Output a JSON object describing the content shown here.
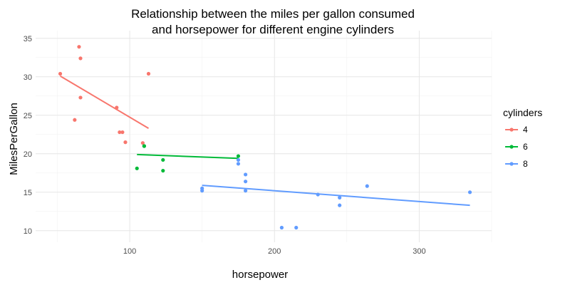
{
  "chart_data": {
    "type": "scatter",
    "title_line1": "Relationship between the miles per gallon consumed",
    "title_line2": "and horsepower for different engine cylinders",
    "xlabel": "horsepower",
    "ylabel": "MilesPerGallon",
    "xlim": [
      35,
      350
    ],
    "ylim": [
      8.5,
      36
    ],
    "xticks": [
      100,
      200,
      300
    ],
    "yticks": [
      10,
      15,
      20,
      25,
      30,
      35
    ],
    "grid": true,
    "legend_title": "cylinders",
    "legend_position": "right",
    "series": [
      {
        "name": "4",
        "color": "#F8766D",
        "points": [
          [
            52,
            30.4
          ],
          [
            62,
            24.4
          ],
          [
            65,
            33.9
          ],
          [
            66,
            32.4
          ],
          [
            66,
            27.3
          ],
          [
            91,
            26.0
          ],
          [
            93,
            22.8
          ],
          [
            95,
            22.8
          ],
          [
            97,
            21.5
          ],
          [
            109,
            21.4
          ],
          [
            113,
            30.4
          ]
        ],
        "fit": [
          [
            52,
            30.1
          ],
          [
            113,
            23.3
          ]
        ]
      },
      {
        "name": "6",
        "color": "#00BA38",
        "points": [
          [
            105,
            18.1
          ],
          [
            110,
            21.0
          ],
          [
            110,
            21.0
          ],
          [
            123,
            19.2
          ],
          [
            123,
            17.8
          ],
          [
            175,
            19.7
          ]
        ],
        "fit": [
          [
            105,
            19.9
          ],
          [
            175,
            19.4
          ]
        ]
      },
      {
        "name": "8",
        "color": "#619CFF",
        "points": [
          [
            150,
            15.5
          ],
          [
            150,
            15.2
          ],
          [
            175,
            18.7
          ],
          [
            175,
            19.2
          ],
          [
            180,
            16.4
          ],
          [
            180,
            17.3
          ],
          [
            180,
            15.2
          ],
          [
            205,
            10.4
          ],
          [
            215,
            10.4
          ],
          [
            230,
            14.7
          ],
          [
            245,
            13.3
          ],
          [
            245,
            14.3
          ],
          [
            264,
            15.8
          ],
          [
            335,
            15.0
          ]
        ],
        "fit": [
          [
            150,
            15.9
          ],
          [
            335,
            13.3
          ]
        ]
      }
    ]
  }
}
